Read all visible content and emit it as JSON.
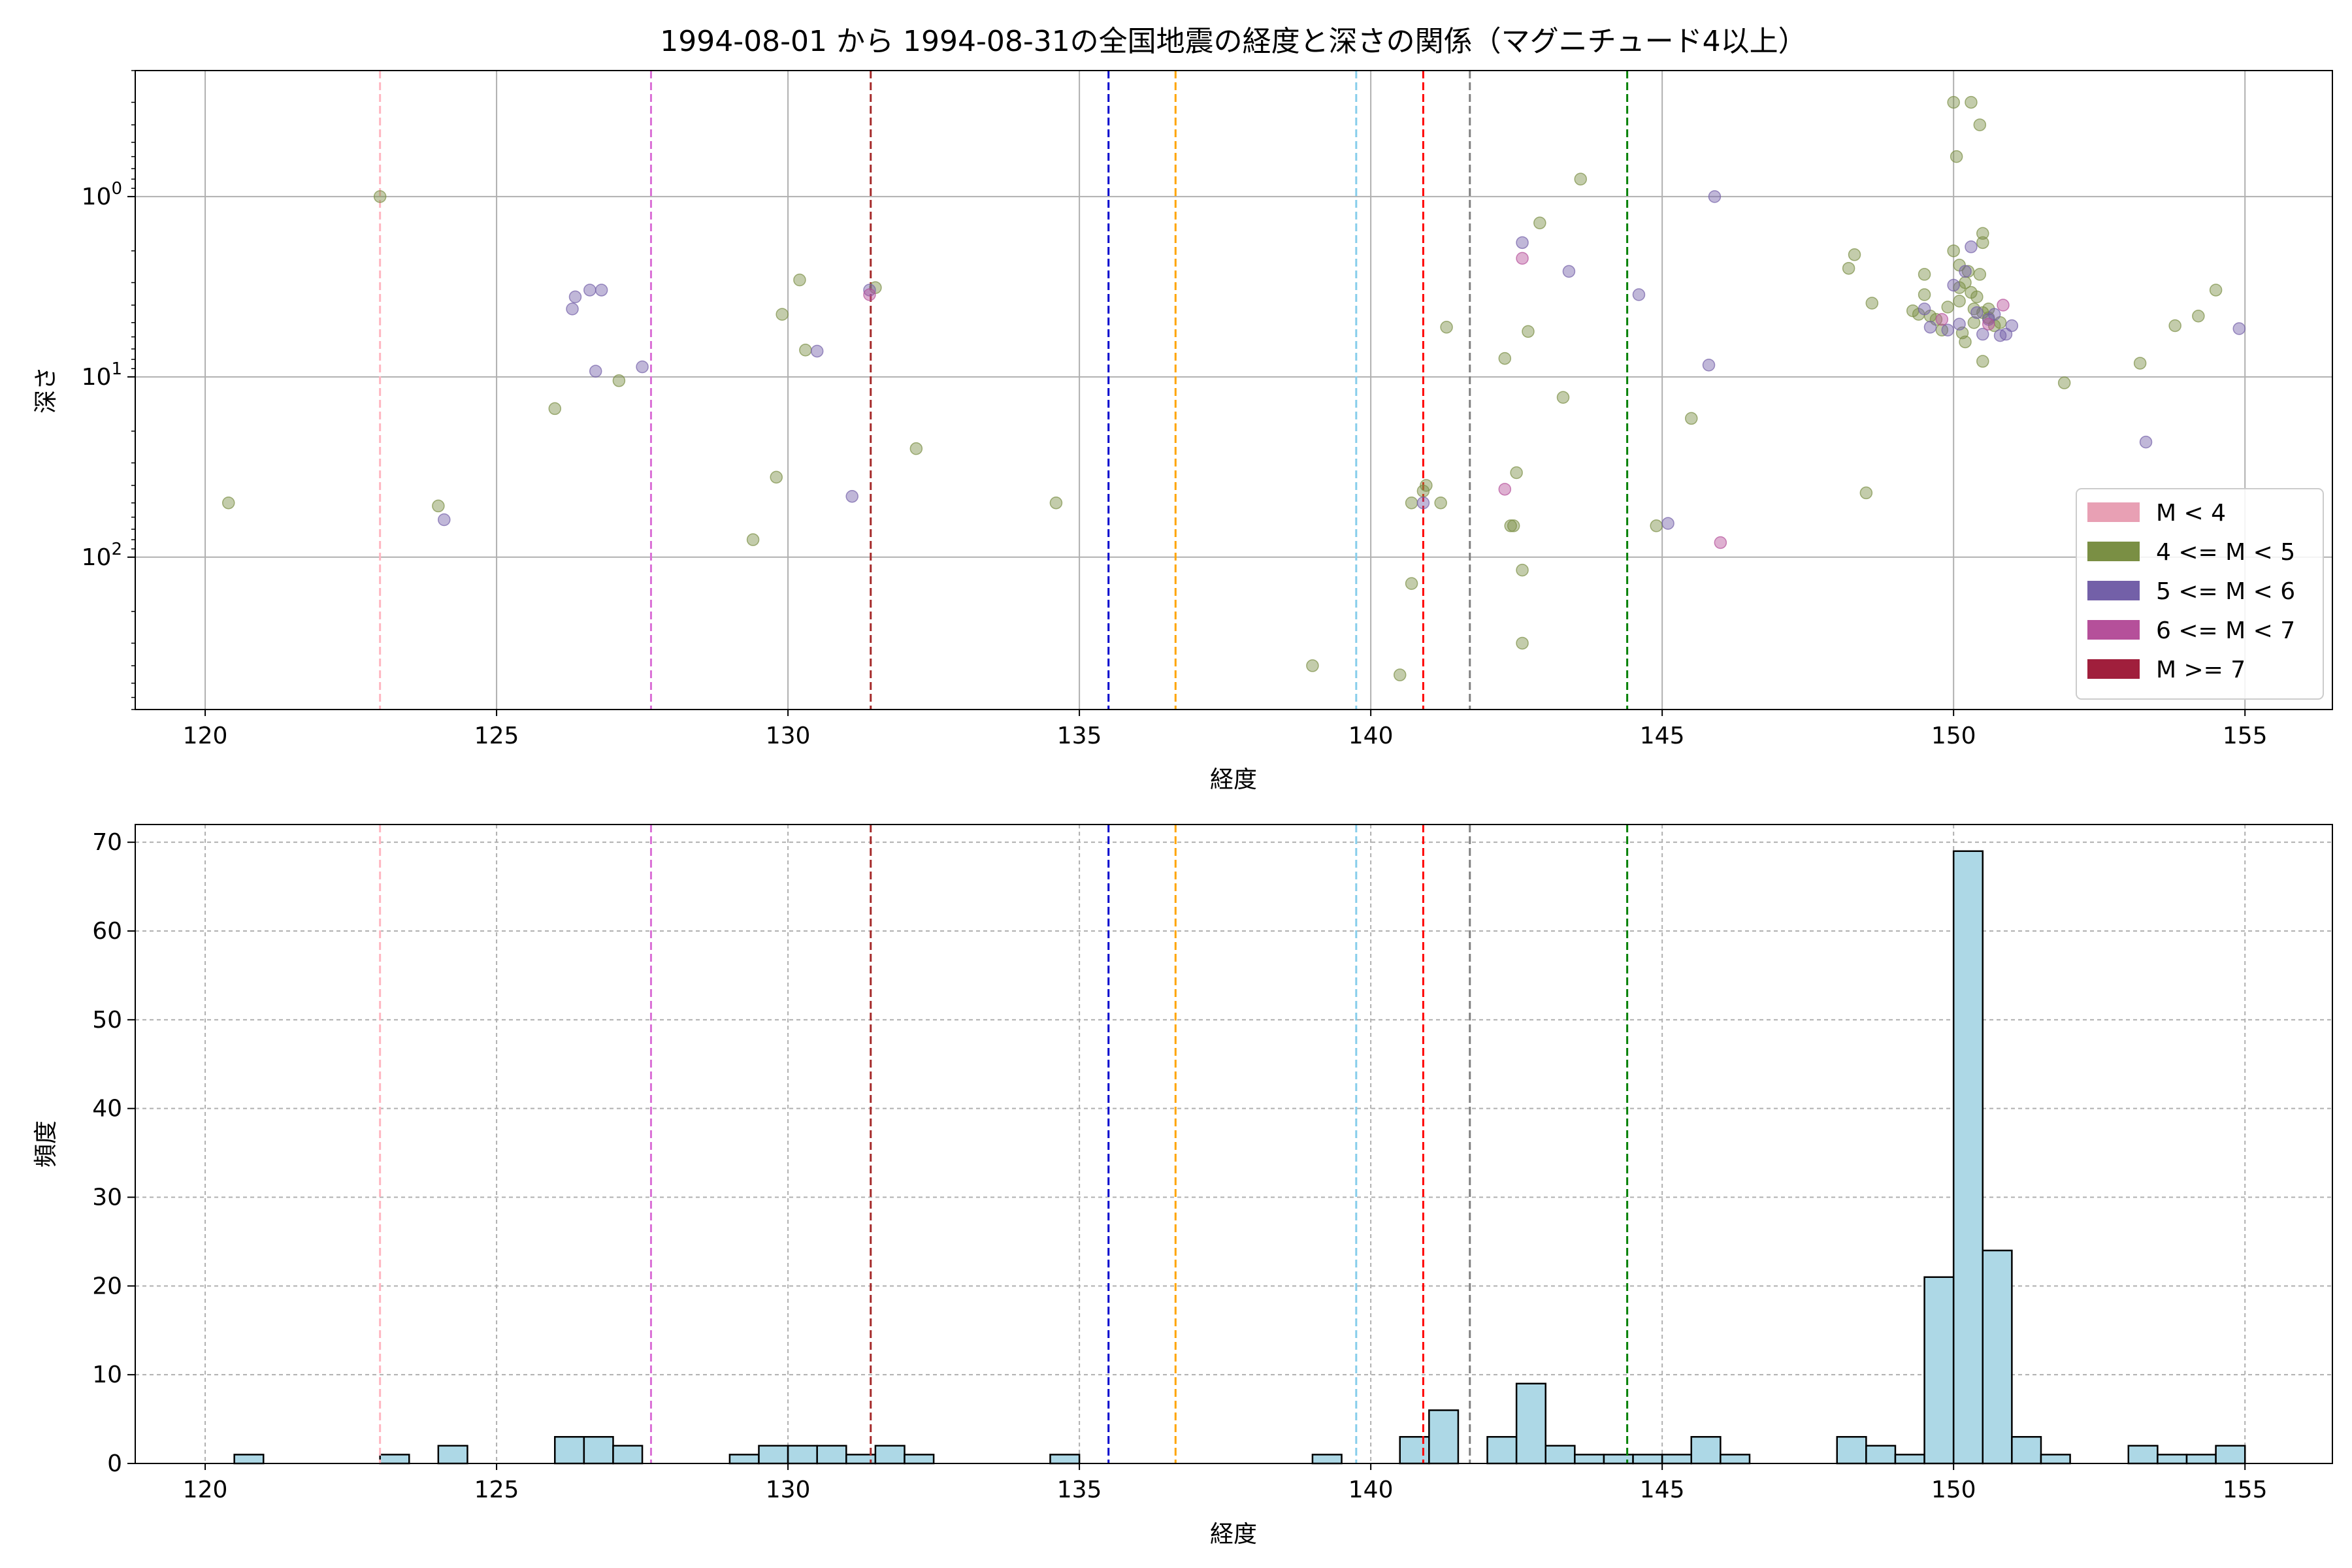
{
  "chart_data": [
    {
      "type": "scatter",
      "title": "1994-08-01 から 1994-08-31の全国地震の経度と深さの関係（マグニチュード4以上）",
      "xlabel": "経度",
      "ylabel": "深さ",
      "xlim": [
        118.8,
        156.5
      ],
      "ylim": [
        700,
        0.2
      ],
      "y_scale": "log (inverted)",
      "x_ticks": [
        "120",
        "125",
        "130",
        "135",
        "140",
        "145",
        "150",
        "155"
      ],
      "y_ticks": [
        {
          "value": 1,
          "base": "10",
          "exp": "0"
        },
        {
          "value": 10,
          "base": "10",
          "exp": "1"
        },
        {
          "value": 100,
          "base": "10",
          "exp": "2"
        }
      ],
      "grid": true,
      "legend_position": "lower-right",
      "legend": [
        {
          "label": "M < 4",
          "color": "#e8a0b4"
        },
        {
          "label": "4 <= M < 5",
          "color": "#7a8f44"
        },
        {
          "label": "5 <= M < 6",
          "color": "#7360a8"
        },
        {
          "label": "6 <= M < 7",
          "color": "#b5509a"
        },
        {
          "label": "M >= 7",
          "color": "#a01f3c"
        }
      ],
      "vlines": [
        {
          "x": 123.0,
          "color": "#ffb6c1"
        },
        {
          "x": 127.65,
          "color": "#da70d6"
        },
        {
          "x": 131.42,
          "color": "#a52a2a"
        },
        {
          "x": 135.5,
          "color": "#0000cd"
        },
        {
          "x": 136.65,
          "color": "#ffa500"
        },
        {
          "x": 139.75,
          "color": "#87ceeb"
        },
        {
          "x": 140.9,
          "color": "#ff0000"
        },
        {
          "x": 141.7,
          "color": "#808080"
        },
        {
          "x": 144.4,
          "color": "#008000"
        }
      ],
      "series": [
        {
          "legend_index": 1,
          "points": [
            [
              120.4,
              50
            ],
            [
              123.0,
              1
            ],
            [
              124.0,
              52
            ],
            [
              126.0,
              15
            ],
            [
              127.1,
              10.5
            ],
            [
              129.4,
              80
            ],
            [
              129.8,
              36
            ],
            [
              129.9,
              4.5
            ],
            [
              130.2,
              2.9
            ],
            [
              130.3,
              7.1
            ],
            [
              131.5,
              3.2
            ],
            [
              132.2,
              25
            ],
            [
              134.6,
              50
            ],
            [
              139.0,
              400
            ],
            [
              140.5,
              450
            ],
            [
              140.7,
              140
            ],
            [
              140.7,
              50
            ],
            [
              140.9,
              43
            ],
            [
              140.95,
              40
            ],
            [
              141.2,
              50
            ],
            [
              141.3,
              5.3
            ],
            [
              142.3,
              7.9
            ],
            [
              142.4,
              67
            ],
            [
              142.45,
              67
            ],
            [
              142.5,
              34
            ],
            [
              142.6,
              118
            ],
            [
              142.6,
              300
            ],
            [
              142.7,
              5.6
            ],
            [
              142.9,
              1.4
            ],
            [
              143.3,
              13
            ],
            [
              143.6,
              0.8
            ],
            [
              144.9,
              67
            ],
            [
              145.5,
              17
            ],
            [
              148.2,
              2.5
            ],
            [
              148.3,
              2.1
            ],
            [
              148.5,
              44
            ],
            [
              148.6,
              3.9
            ],
            [
              149.3,
              4.3
            ],
            [
              149.4,
              4.5
            ],
            [
              149.5,
              2.7
            ],
            [
              149.5,
              3.5
            ],
            [
              149.6,
              4.6
            ],
            [
              149.7,
              4.8
            ],
            [
              149.8,
              5.5
            ],
            [
              149.9,
              4.1
            ],
            [
              150.0,
              2.0
            ],
            [
              150.0,
              0.3
            ],
            [
              150.05,
              0.6
            ],
            [
              150.1,
              2.4
            ],
            [
              150.1,
              3.2
            ],
            [
              150.1,
              3.8
            ],
            [
              150.15,
              5.7
            ],
            [
              150.2,
              3.0
            ],
            [
              150.2,
              6.4
            ],
            [
              150.25,
              2.6
            ],
            [
              150.3,
              3.4
            ],
            [
              150.3,
              0.3
            ],
            [
              150.35,
              4.2
            ],
            [
              150.35,
              5.0
            ],
            [
              150.4,
              3.6
            ],
            [
              150.45,
              0.4
            ],
            [
              150.45,
              2.7
            ],
            [
              150.5,
              1.6
            ],
            [
              150.5,
              1.8
            ],
            [
              150.5,
              4.4
            ],
            [
              150.5,
              8.2
            ],
            [
              150.6,
              4.7
            ],
            [
              150.6,
              4.2
            ],
            [
              150.7,
              5.2
            ],
            [
              150.8,
              5.0
            ],
            [
              151.9,
              10.8
            ],
            [
              153.2,
              8.4
            ],
            [
              153.8,
              5.2
            ],
            [
              154.2,
              4.6
            ],
            [
              154.5,
              3.3
            ]
          ]
        },
        {
          "legend_index": 2,
          "points": [
            [
              124.1,
              62
            ],
            [
              126.3,
              4.2
            ],
            [
              126.35,
              3.6
            ],
            [
              126.6,
              3.3
            ],
            [
              126.7,
              9.3
            ],
            [
              126.8,
              3.3
            ],
            [
              127.5,
              8.8
            ],
            [
              130.5,
              7.2
            ],
            [
              131.1,
              46
            ],
            [
              131.4,
              3.3
            ],
            [
              140.9,
              50
            ],
            [
              142.6,
              1.8
            ],
            [
              143.4,
              2.6
            ],
            [
              144.6,
              3.5
            ],
            [
              145.1,
              65
            ],
            [
              145.8,
              8.6
            ],
            [
              145.9,
              1.0
            ],
            [
              149.5,
              4.2
            ],
            [
              149.6,
              5.3
            ],
            [
              149.9,
              5.5
            ],
            [
              150.0,
              3.1
            ],
            [
              150.1,
              5.1
            ],
            [
              150.2,
              2.6
            ],
            [
              150.3,
              1.9
            ],
            [
              150.4,
              4.4
            ],
            [
              150.5,
              5.8
            ],
            [
              150.6,
              4.8
            ],
            [
              150.7,
              4.5
            ],
            [
              150.8,
              5.9
            ],
            [
              150.9,
              5.8
            ],
            [
              151.0,
              5.2
            ],
            [
              153.3,
              23
            ],
            [
              154.9,
              5.4
            ]
          ]
        },
        {
          "legend_index": 3,
          "points": [
            [
              131.4,
              3.5
            ],
            [
              142.3,
              42
            ],
            [
              142.6,
              2.2
            ],
            [
              146.0,
              83
            ],
            [
              149.8,
              4.8
            ],
            [
              150.85,
              4.0
            ],
            [
              150.6,
              5.1
            ]
          ]
        }
      ]
    },
    {
      "type": "bar",
      "title": "",
      "xlabel": "経度",
      "ylabel": "頻度",
      "xlim": [
        118.8,
        156.5
      ],
      "ylim": [
        0,
        72
      ],
      "x_ticks": [
        "120",
        "125",
        "130",
        "135",
        "140",
        "145",
        "150",
        "155"
      ],
      "y_ticks": [
        "0",
        "10",
        "20",
        "30",
        "40",
        "50",
        "60",
        "70"
      ],
      "grid": true,
      "bar_color": "#add8e6",
      "bin_width": 0.5,
      "bins": [
        [
          120.5,
          1
        ],
        [
          123.0,
          1
        ],
        [
          124.0,
          2
        ],
        [
          126.0,
          3
        ],
        [
          126.5,
          3
        ],
        [
          127.0,
          2
        ],
        [
          129.0,
          1
        ],
        [
          129.5,
          2
        ],
        [
          130.0,
          2
        ],
        [
          130.5,
          2
        ],
        [
          131.0,
          1
        ],
        [
          131.5,
          2
        ],
        [
          132.0,
          1
        ],
        [
          134.5,
          1
        ],
        [
          139.0,
          1
        ],
        [
          140.5,
          3
        ],
        [
          141.0,
          6
        ],
        [
          142.0,
          3
        ],
        [
          142.5,
          9
        ],
        [
          143.0,
          2
        ],
        [
          143.5,
          1
        ],
        [
          144.0,
          1
        ],
        [
          144.5,
          1
        ],
        [
          145.0,
          1
        ],
        [
          145.5,
          3
        ],
        [
          146.0,
          1
        ],
        [
          148.0,
          3
        ],
        [
          148.5,
          2
        ],
        [
          149.0,
          1
        ],
        [
          149.5,
          21
        ],
        [
          150.0,
          69
        ],
        [
          150.5,
          24
        ],
        [
          151.0,
          3
        ],
        [
          151.5,
          1
        ],
        [
          153.0,
          2
        ],
        [
          153.5,
          1
        ],
        [
          154.0,
          1
        ],
        [
          154.5,
          2
        ]
      ],
      "vlines": [
        {
          "x": 123.0,
          "color": "#ffb6c1"
        },
        {
          "x": 127.65,
          "color": "#da70d6"
        },
        {
          "x": 131.42,
          "color": "#a52a2a"
        },
        {
          "x": 135.5,
          "color": "#0000cd"
        },
        {
          "x": 136.65,
          "color": "#ffa500"
        },
        {
          "x": 139.75,
          "color": "#87ceeb"
        },
        {
          "x": 140.9,
          "color": "#ff0000"
        },
        {
          "x": 141.7,
          "color": "#808080"
        },
        {
          "x": 144.4,
          "color": "#008000"
        }
      ]
    }
  ]
}
